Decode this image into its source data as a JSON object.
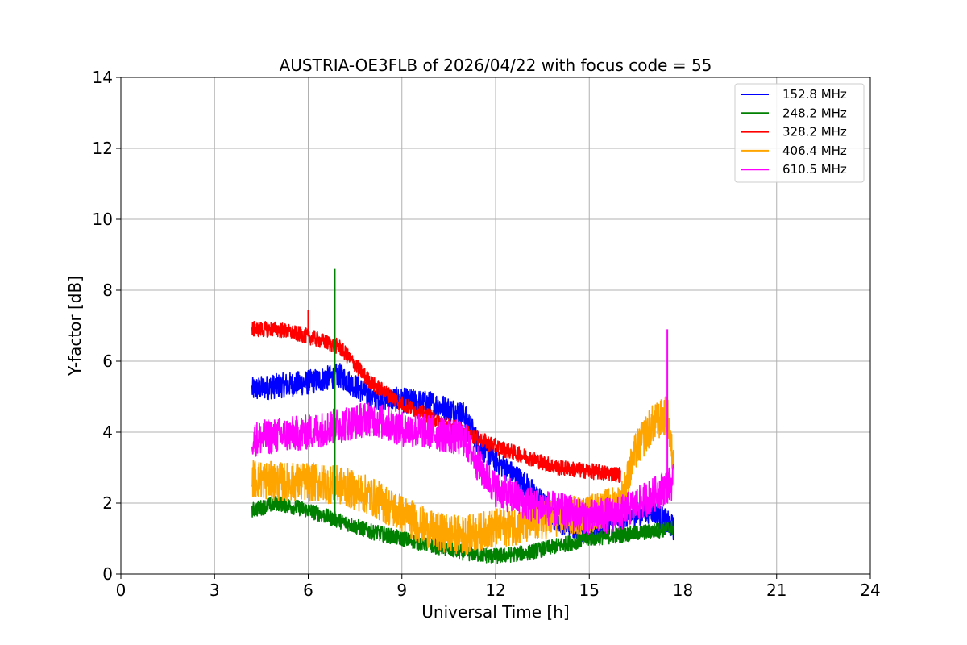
{
  "chart_data": {
    "type": "line",
    "title": "AUSTRIA-OE3FLB of 2026/04/22 with focus code = 55",
    "xlabel": "Universal Time [h]",
    "ylabel": "Y-factor [dB]",
    "xlim": [
      0,
      24
    ],
    "ylim": [
      0,
      14
    ],
    "xticks": [
      "0",
      "3",
      "6",
      "9",
      "12",
      "15",
      "18",
      "21",
      "24"
    ],
    "yticks": [
      "0",
      "2",
      "4",
      "6",
      "8",
      "10",
      "12",
      "14"
    ],
    "grid": true,
    "legend_position": "top-right",
    "series": [
      {
        "name": "152.8 MHz",
        "color": "#0000ff",
        "noise": 0.35,
        "x": [
          4.2,
          5.0,
          6.0,
          7.0,
          8.0,
          9.0,
          10.0,
          11.0,
          11.5,
          12.0,
          13.0,
          14.0,
          15.0,
          16.0,
          17.0,
          17.7
        ],
        "y": [
          5.2,
          5.3,
          5.4,
          5.6,
          5.0,
          4.9,
          4.8,
          4.5,
          3.6,
          3.2,
          2.5,
          1.5,
          1.2,
          1.6,
          1.8,
          1.3
        ]
      },
      {
        "name": "248.2 MHz",
        "color": "#008000",
        "noise": 0.22,
        "x": [
          4.2,
          5.0,
          6.0,
          7.0,
          8.0,
          9.0,
          10.0,
          11.0,
          12.0,
          13.0,
          14.0,
          15.0,
          16.0,
          17.0,
          17.7
        ],
        "y": [
          1.8,
          2.0,
          1.8,
          1.5,
          1.2,
          1.0,
          0.8,
          0.6,
          0.5,
          0.6,
          0.8,
          1.0,
          1.1,
          1.2,
          1.3
        ]
      },
      {
        "name": "328.2 MHz",
        "color": "#ff0000",
        "noise": 0.22,
        "x": [
          4.2,
          5.0,
          6.0,
          7.0,
          7.5,
          8.0,
          9.0,
          10.0,
          11.0,
          12.0,
          13.0,
          14.0,
          15.0,
          16.0
        ],
        "y": [
          6.9,
          6.9,
          6.7,
          6.4,
          5.9,
          5.4,
          4.8,
          4.4,
          4.0,
          3.6,
          3.3,
          3.0,
          2.9,
          2.8
        ]
      },
      {
        "name": "406.4 MHz",
        "color": "#ffa500",
        "noise": 0.55,
        "x": [
          4.2,
          5.0,
          6.0,
          7.0,
          8.0,
          9.0,
          10.0,
          11.0,
          12.0,
          13.0,
          14.0,
          15.0,
          16.0,
          16.5,
          17.0,
          17.5,
          17.7
        ],
        "y": [
          2.7,
          2.6,
          2.6,
          2.5,
          2.2,
          1.7,
          1.2,
          1.1,
          1.3,
          1.4,
          1.6,
          1.7,
          2.0,
          3.5,
          4.2,
          4.5,
          3.0
        ]
      },
      {
        "name": "610.5 MHz",
        "color": "#ff00ff",
        "noise": 0.5,
        "x": [
          4.2,
          5.0,
          6.0,
          7.0,
          8.0,
          9.0,
          10.0,
          11.0,
          11.5,
          12.0,
          13.0,
          14.0,
          15.0,
          16.0,
          17.0,
          17.7
        ],
        "y": [
          3.8,
          3.9,
          4.0,
          4.2,
          4.4,
          4.1,
          4.0,
          3.8,
          3.0,
          2.4,
          2.0,
          1.8,
          1.6,
          1.7,
          2.2,
          2.6
        ]
      }
    ],
    "spikes": [
      {
        "series": "248.2 MHz",
        "x": 6.85,
        "y": 8.6
      },
      {
        "series": "328.2 MHz",
        "x": 6.0,
        "y": 7.45
      },
      {
        "series": "610.5 MHz",
        "x": 17.5,
        "y": 6.9
      }
    ]
  }
}
